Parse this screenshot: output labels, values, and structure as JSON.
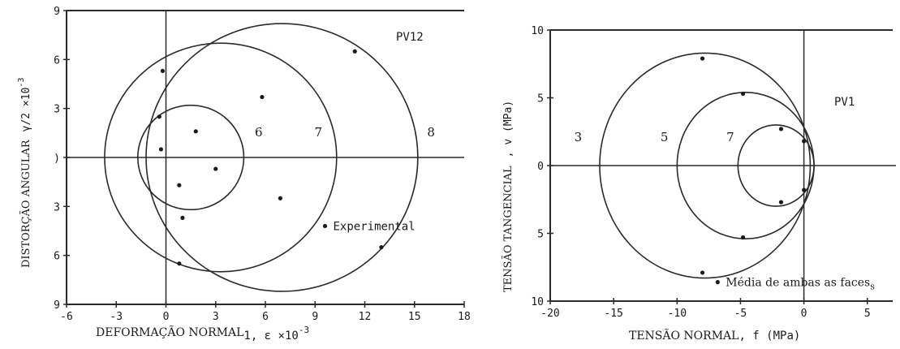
{
  "chart_data": [
    {
      "type": "scatter",
      "title": "",
      "panel_label": "PV12",
      "xlabel": "DEFORMAÇÃO NORMAL",
      "xlabel_suffix": "1, ε ×10",
      "xlabel_exponent": "-3",
      "ylabel": "DISTORÇÃO ANGULAR",
      "ylabel_suffix": "γ/2 ×10",
      "ylabel_exponent": "-3",
      "xlim": [
        -6,
        18
      ],
      "ylim": [
        -9,
        9
      ],
      "xticks": [
        -6,
        -3,
        0,
        3,
        6,
        9,
        12,
        15,
        18
      ],
      "xtick_labels": [
        "-6",
        "-3",
        "0",
        "3",
        "6",
        "9",
        "12",
        "15",
        "18"
      ],
      "yticks": [
        9,
        6,
        3,
        0,
        -3,
        -6,
        -9
      ],
      "ytick_labels": [
        "9",
        "6",
        "3",
        ")",
        "3",
        "6",
        "9"
      ],
      "grid": false,
      "circles": [
        {
          "label": "6",
          "center": [
            1.5,
            0
          ],
          "radius": 3.2
        },
        {
          "label": "7",
          "center": [
            3.3,
            0
          ],
          "radius": 7.0
        },
        {
          "label": "8",
          "center": [
            7.0,
            0
          ],
          "radius": 8.2
        }
      ],
      "experimental_points": [
        [
          -0.3,
          0.5
        ],
        [
          1.8,
          1.6
        ],
        [
          3.0,
          -0.7
        ],
        [
          0.8,
          -1.7
        ],
        [
          -0.4,
          2.5
        ],
        [
          5.8,
          3.7
        ],
        [
          6.9,
          -2.5
        ],
        [
          1.0,
          -3.7
        ],
        [
          -0.2,
          5.3
        ],
        [
          11.4,
          6.5
        ],
        [
          13.0,
          -5.5
        ],
        [
          0.8,
          -6.5
        ]
      ],
      "legend_marker_point": [
        9.6,
        -4.2
      ],
      "legend": "Experimental"
    },
    {
      "type": "scatter",
      "title": "",
      "panel_label": "PV1",
      "xlabel": "TENSÃO NORMAL",
      "xlabel_suffix": ", f (MPa)",
      "ylabel": "TENSÃO TANGENCIAL",
      "ylabel_suffix": ", v (MPa)",
      "xlim": [
        -20,
        7
      ],
      "ylim": [
        -10,
        10
      ],
      "xticks": [
        -20,
        -15,
        -10,
        -5,
        0,
        5
      ],
      "xtick_labels": [
        "-20",
        "-15",
        "-10",
        "-5",
        "0",
        "5"
      ],
      "yticks": [
        10,
        5,
        0,
        -5,
        -10
      ],
      "ytick_labels": [
        "10",
        "5",
        "0",
        "5",
        "10"
      ],
      "grid": false,
      "circles": [
        {
          "label": "3",
          "center": [
            -2.2,
            0
          ],
          "radius": 3.0
        },
        {
          "label": "5",
          "center": [
            -4.6,
            0
          ],
          "radius": 5.4
        },
        {
          "label": "7",
          "center": [
            -7.8,
            0
          ],
          "radius": 8.3
        }
      ],
      "points": [
        [
          -1.8,
          2.7
        ],
        [
          -1.8,
          -2.7
        ],
        [
          0,
          1.8
        ],
        [
          0,
          -1.8
        ],
        [
          -4.8,
          5.3
        ],
        [
          -4.8,
          -5.3
        ],
        [
          -8.0,
          7.9
        ],
        [
          -8.0,
          -7.9
        ]
      ],
      "legend_marker_point": [
        -6.8,
        -8.6
      ],
      "legend": "Média de ambas as faces",
      "legend_suffix": "s"
    }
  ]
}
